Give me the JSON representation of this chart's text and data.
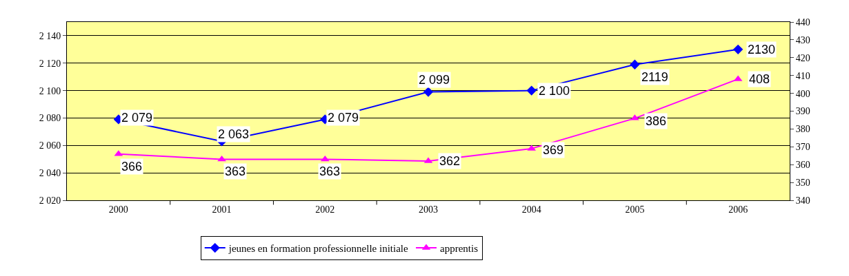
{
  "chart_data": {
    "type": "line",
    "categories": [
      "2000",
      "2001",
      "2002",
      "2003",
      "2004",
      "2005",
      "2006"
    ],
    "series": [
      {
        "name": "jeunes en formation professionnelle initiale",
        "color": "#0000ff",
        "marker": "diamond",
        "values": [
          2079,
          2063,
          2079,
          2099,
          2100,
          2119,
          2130
        ],
        "value_labels": [
          "2 079",
          "2 063",
          "2 079",
          "2 099",
          "2 100",
          "2119",
          "2130"
        ]
      },
      {
        "name": "apprentis",
        "color": "#ff00ff",
        "marker": "triangle",
        "axis": "y2",
        "values": [
          366,
          363,
          363,
          362,
          369,
          386,
          408
        ],
        "value_labels": [
          "366",
          "363",
          "363",
          "362",
          "369",
          "386",
          "408"
        ]
      }
    ],
    "ylim": [
      2020,
      2150
    ],
    "yticks": [
      {
        "value": 2020,
        "label": "2 020"
      },
      {
        "value": 2040,
        "label": "2 040"
      },
      {
        "value": 2060,
        "label": "2 060"
      },
      {
        "value": 2080,
        "label": "2 080"
      },
      {
        "value": 2100,
        "label": "2 100"
      },
      {
        "value": 2120,
        "label": "2 120"
      },
      {
        "value": 2140,
        "label": "2 140"
      }
    ],
    "y2lim": [
      340,
      440
    ],
    "y2ticks": [
      340,
      350,
      360,
      370,
      380,
      390,
      400,
      410,
      420,
      430,
      440
    ],
    "grid": "y",
    "legend": "bottom"
  }
}
